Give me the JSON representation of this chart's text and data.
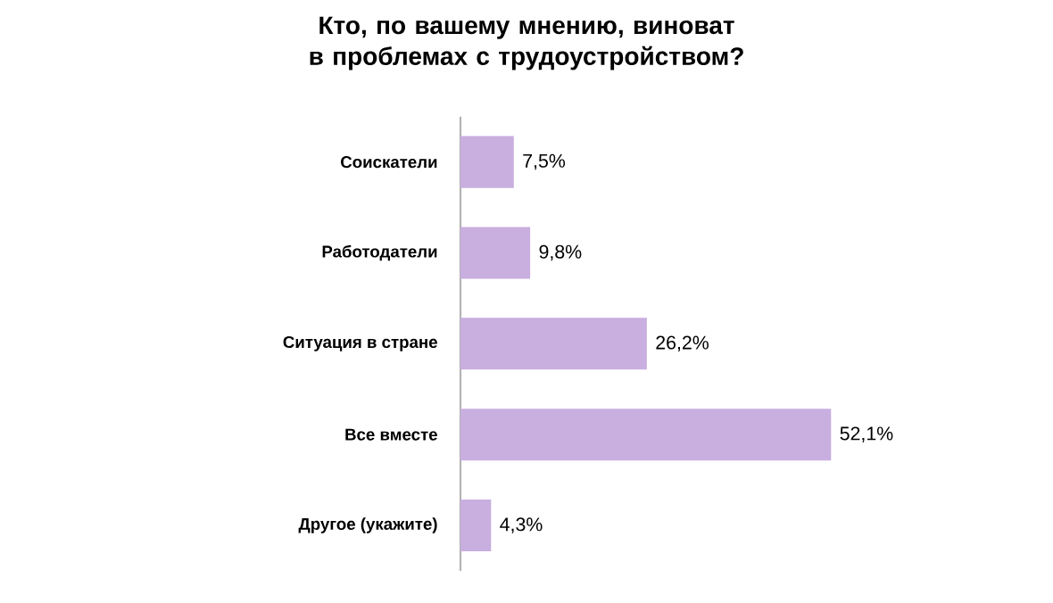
{
  "chart_data": {
    "type": "bar",
    "orientation": "horizontal",
    "title": "Кто, по вашему мнению, виноват в проблемах с трудоустройством?",
    "categories": [
      "Соискатели",
      "Работодатели",
      "Ситуация в стране",
      "Все вместе",
      "Другое (укажите)"
    ],
    "values": [
      7.5,
      9.8,
      26.2,
      52.1,
      4.3
    ],
    "value_labels": [
      "7,5%",
      "9,8%",
      "26,2%",
      "52,1%",
      "4,3%"
    ],
    "color": "#c9aee0"
  }
}
